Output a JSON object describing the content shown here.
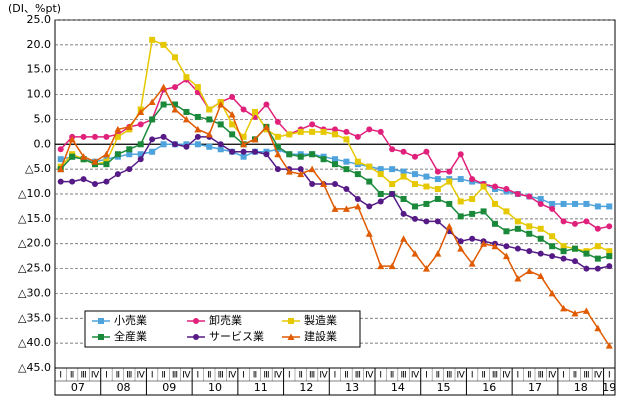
{
  "chart_data": {
    "type": "line",
    "y_unit_label": "(DI、%pt)",
    "categories": [
      "Ⅰ",
      "Ⅱ",
      "Ⅲ",
      "Ⅳ",
      "Ⅰ",
      "Ⅱ",
      "Ⅲ",
      "Ⅳ",
      "Ⅰ",
      "Ⅱ",
      "Ⅲ",
      "Ⅳ",
      "Ⅰ",
      "Ⅱ",
      "Ⅲ",
      "Ⅳ",
      "Ⅰ",
      "Ⅱ",
      "Ⅲ",
      "Ⅳ",
      "Ⅰ",
      "Ⅱ",
      "Ⅲ",
      "Ⅳ",
      "Ⅰ",
      "Ⅱ",
      "Ⅲ",
      "Ⅳ",
      "Ⅰ",
      "Ⅱ",
      "Ⅲ",
      "Ⅳ",
      "Ⅰ",
      "Ⅱ",
      "Ⅲ",
      "Ⅳ",
      "Ⅰ",
      "Ⅱ",
      "Ⅲ",
      "Ⅳ",
      "Ⅰ",
      "Ⅱ",
      "Ⅲ",
      "Ⅳ",
      "Ⅰ",
      "Ⅱ",
      "Ⅲ",
      "Ⅳ",
      "Ⅰ"
    ],
    "years": [
      "07",
      "08",
      "09",
      "10",
      "11",
      "12",
      "13",
      "14",
      "15",
      "16",
      "17",
      "18",
      "19"
    ],
    "ylim": [
      -45,
      25
    ],
    "yticks": [
      {
        "value": 25,
        "label": "25.0"
      },
      {
        "value": 20,
        "label": "20.0"
      },
      {
        "value": 15,
        "label": "15.0"
      },
      {
        "value": 10,
        "label": "10.0"
      },
      {
        "value": 5,
        "label": "5.0"
      },
      {
        "value": 0,
        "label": "0.0"
      },
      {
        "value": -5,
        "label": "△5.0"
      },
      {
        "value": -10,
        "label": "△10.0"
      },
      {
        "value": -15,
        "label": "△15.0"
      },
      {
        "value": -20,
        "label": "△20.0"
      },
      {
        "value": -25,
        "label": "△25.0"
      },
      {
        "value": -30,
        "label": "△30.0"
      },
      {
        "value": -35,
        "label": "△35.0"
      },
      {
        "value": -40,
        "label": "△40.0"
      },
      {
        "value": -45,
        "label": "△45.0"
      }
    ],
    "grid": true,
    "series": [
      {
        "name": "小売業",
        "color": "#4fa3dc",
        "marker": "square",
        "values": [
          -3,
          -2.5,
          -3,
          -3.5,
          -3,
          -2.5,
          -2,
          -2,
          -1.5,
          0,
          0,
          0,
          0,
          -0.5,
          -1,
          -1.5,
          -2.5,
          -1.5,
          -1.5,
          -1,
          -2,
          -2,
          -2,
          -2.5,
          -3,
          -3.5,
          -4,
          -4.5,
          -5,
          -5,
          -5.5,
          -6,
          -6.5,
          -7,
          -7,
          -7,
          -7.5,
          -8,
          -9,
          -9.5,
          -10,
          -10.5,
          -11,
          -12,
          -12,
          -12,
          -12,
          -12.5,
          -12.5
        ]
      },
      {
        "name": "卸売業",
        "color": "#e0207a",
        "marker": "circle",
        "values": [
          -1,
          1.5,
          1.5,
          1.5,
          1.5,
          2,
          3.5,
          4,
          5,
          11,
          11.5,
          13,
          10.5,
          7,
          8.5,
          9.5,
          7,
          5.5,
          8,
          4.5,
          2,
          3,
          4,
          3,
          3,
          2.5,
          1.5,
          3,
          2.5,
          -1,
          -1.5,
          -2.5,
          -1.5,
          -5.5,
          -5.5,
          -2,
          -7,
          -8,
          -8.5,
          -9,
          -10,
          -10.5,
          -12,
          -13,
          -15.5,
          -16,
          -15.5,
          -17,
          -16.5
        ]
      },
      {
        "name": "製造業",
        "color": "#e6c800",
        "marker": "square",
        "values": [
          -4.5,
          -2,
          -3,
          -4,
          -3.5,
          1.5,
          3,
          7,
          21,
          20,
          17.5,
          13.5,
          11.5,
          7,
          8.5,
          4,
          1.5,
          6.5,
          3,
          1.5,
          2,
          2.5,
          2.5,
          2.5,
          2,
          1,
          -3.5,
          -4.5,
          -6,
          -8,
          -6.5,
          -8,
          -8.5,
          -9,
          -7.5,
          -11.5,
          -11,
          -8.5,
          -12,
          -13.5,
          -15.5,
          -16.5,
          -17,
          -18.5,
          -20.5,
          -21,
          -21.5,
          -20.5,
          -21.5
        ]
      },
      {
        "name": "全産業",
        "color": "#1a8a3a",
        "marker": "square",
        "values": [
          -5,
          -2.5,
          -3,
          -4,
          -4,
          -2,
          -1,
          0,
          5,
          8,
          8,
          6.5,
          5.5,
          5,
          4,
          2,
          0,
          1,
          3.5,
          -0.5,
          -2,
          -2.5,
          -2,
          -3,
          -4,
          -5,
          -6,
          -7.5,
          -10,
          -10,
          -11,
          -12.5,
          -12,
          -11,
          -12,
          -14.5,
          -14,
          -13.5,
          -16,
          -17.5,
          -17,
          -18,
          -19,
          -20.5,
          -21.5,
          -21,
          -22,
          -23,
          -22.5
        ]
      },
      {
        "name": "サービス業",
        "color": "#561a86",
        "marker": "circle",
        "values": [
          -7.5,
          -7.5,
          -7,
          -8,
          -7.5,
          -6,
          -5,
          -3,
          1,
          1.5,
          0,
          -0.5,
          1.5,
          1.5,
          0,
          -1.5,
          -1.5,
          -1.5,
          -2,
          -5,
          -5,
          -5,
          -8,
          -8,
          -8,
          -9,
          -11,
          -12.5,
          -11.5,
          -10,
          -14,
          -15,
          -15.5,
          -15.5,
          -17.5,
          -19.5,
          -19,
          -19.5,
          -20,
          -20.5,
          -21,
          -21.5,
          -22,
          -22.5,
          -23,
          -23.5,
          -25,
          -25,
          -24.5
        ]
      },
      {
        "name": "建設業",
        "color": "#e05a00",
        "marker": "triangle",
        "values": [
          -5,
          1,
          -2.5,
          -3.5,
          -2,
          3,
          3.5,
          6.5,
          8.5,
          11.5,
          7,
          5,
          3,
          2,
          8,
          6,
          0,
          1,
          3.5,
          -2,
          -5.5,
          -6,
          -5,
          -8,
          -13,
          -13,
          -12.5,
          -18,
          -24.5,
          -24.5,
          -19,
          -22,
          -25,
          -22,
          -16.5,
          -21,
          -24,
          -20,
          -20.5,
          -22.5,
          -27,
          -25.5,
          -26.5,
          -30,
          -33,
          -34,
          -33.5,
          -37,
          -40.5
        ]
      }
    ]
  }
}
